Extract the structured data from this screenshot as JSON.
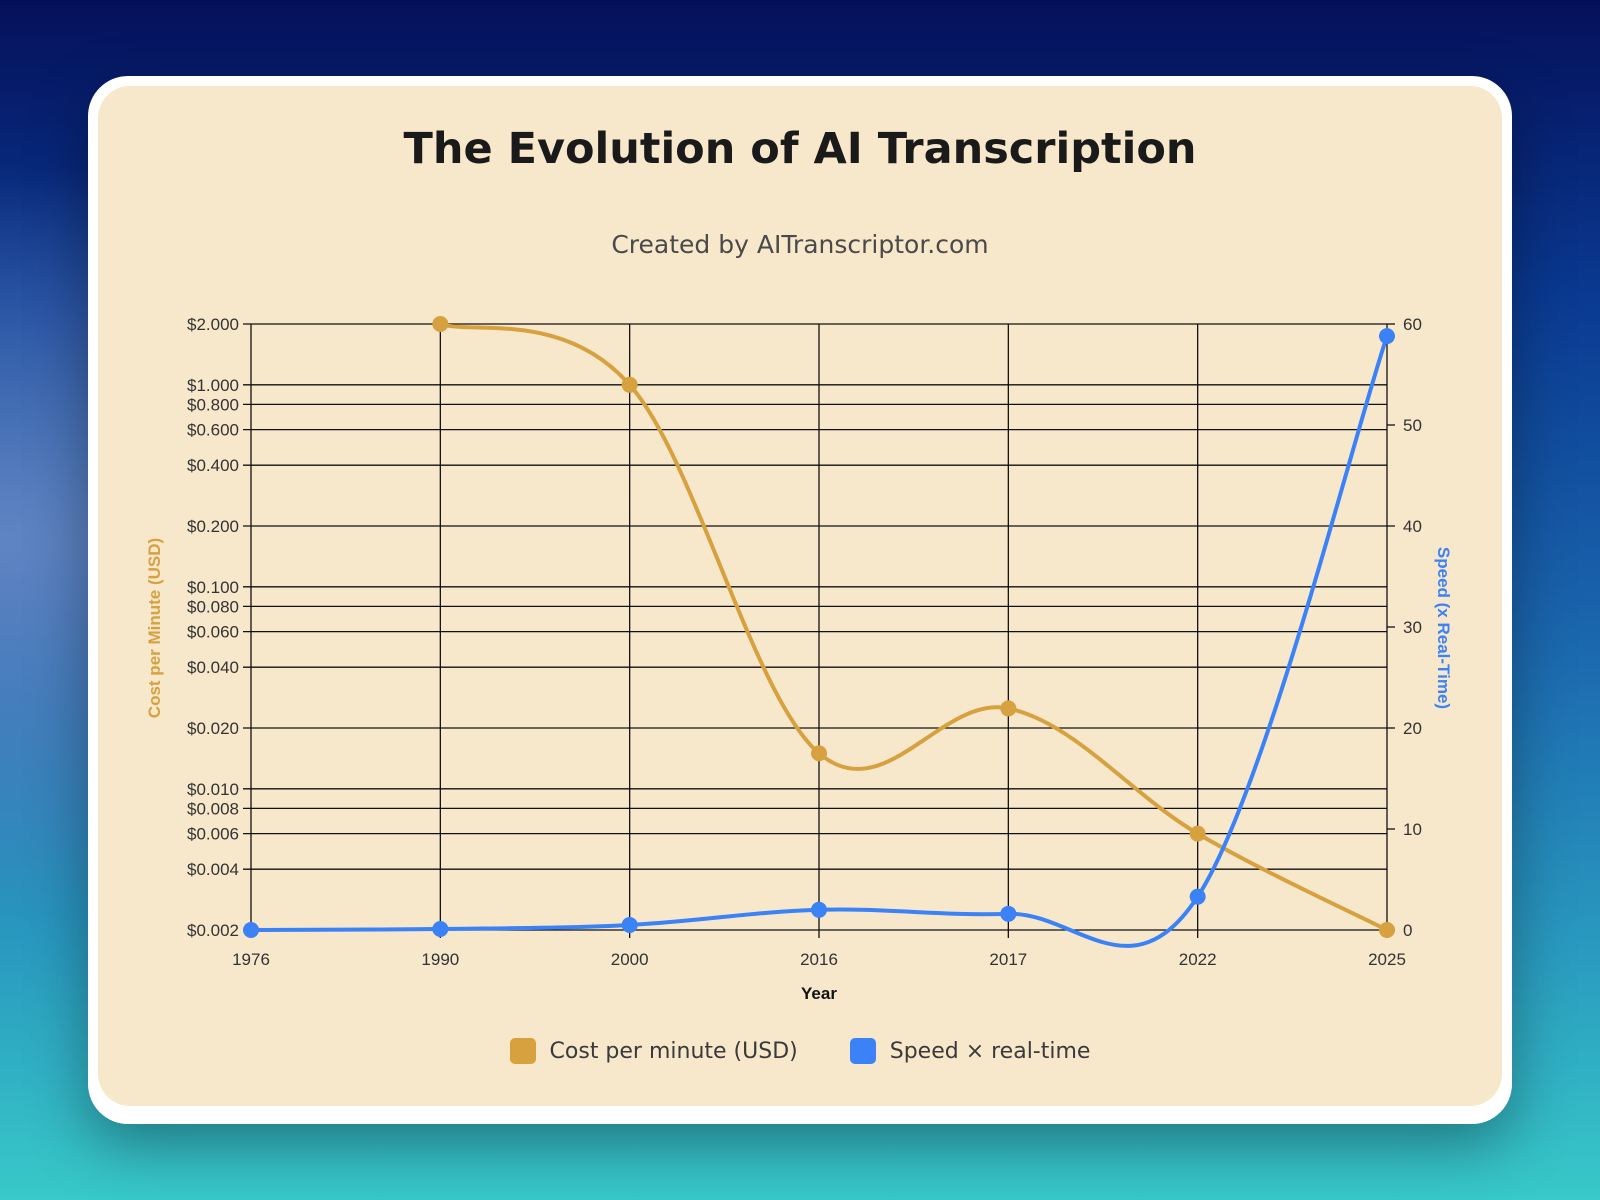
{
  "chart_data": {
    "type": "line",
    "title": "The Evolution of AI Transcription",
    "subtitle": "Created by AITranscriptor.com",
    "xlabel": "Year",
    "categories": [
      "1976",
      "1990",
      "2000",
      "2016",
      "2017",
      "2022",
      "2025"
    ],
    "series": [
      {
        "name": "Cost per minute (USD)",
        "axis": "left",
        "color": "#d6a13e",
        "values": [
          null,
          2.0,
          1.0,
          0.015,
          0.025,
          0.006,
          0.002
        ]
      },
      {
        "name": "Speed × real-time",
        "axis": "right",
        "color": "#3b82f6",
        "values": [
          0,
          0.1,
          0.5,
          2,
          1.6,
          3.3,
          58.8
        ]
      }
    ],
    "y_left": {
      "label": "Cost per Minute (USD)",
      "scale": "log",
      "range": [
        0.002,
        2.0
      ],
      "ticks": [
        0.002,
        0.004,
        0.006,
        0.008,
        0.01,
        0.02,
        0.04,
        0.06,
        0.08,
        0.1,
        0.2,
        0.4,
        0.6,
        0.8,
        1.0,
        2.0
      ],
      "tick_labels": [
        "$0.002",
        "$0.004",
        "$0.006",
        "$0.008",
        "$0.010",
        "$0.020",
        "$0.040",
        "$0.060",
        "$0.080",
        "$0.100",
        "$0.200",
        "$0.400",
        "$0.600",
        "$0.800",
        "$1.000",
        "$2.000"
      ],
      "color": "#d6a13e"
    },
    "y_right": {
      "label": "Speed (x Real-Time)",
      "scale": "linear",
      "range": [
        0,
        60
      ],
      "ticks": [
        0,
        10,
        20,
        30,
        40,
        50,
        60
      ],
      "tick_labels": [
        "0",
        "10",
        "20",
        "30",
        "40",
        "50",
        "60"
      ],
      "color": "#3b82f6"
    },
    "grid": true,
    "legend_position": "bottom-center"
  },
  "colors": {
    "card_background": "#f7e8cc",
    "grid": "#111111",
    "tick_text": "#333333"
  }
}
